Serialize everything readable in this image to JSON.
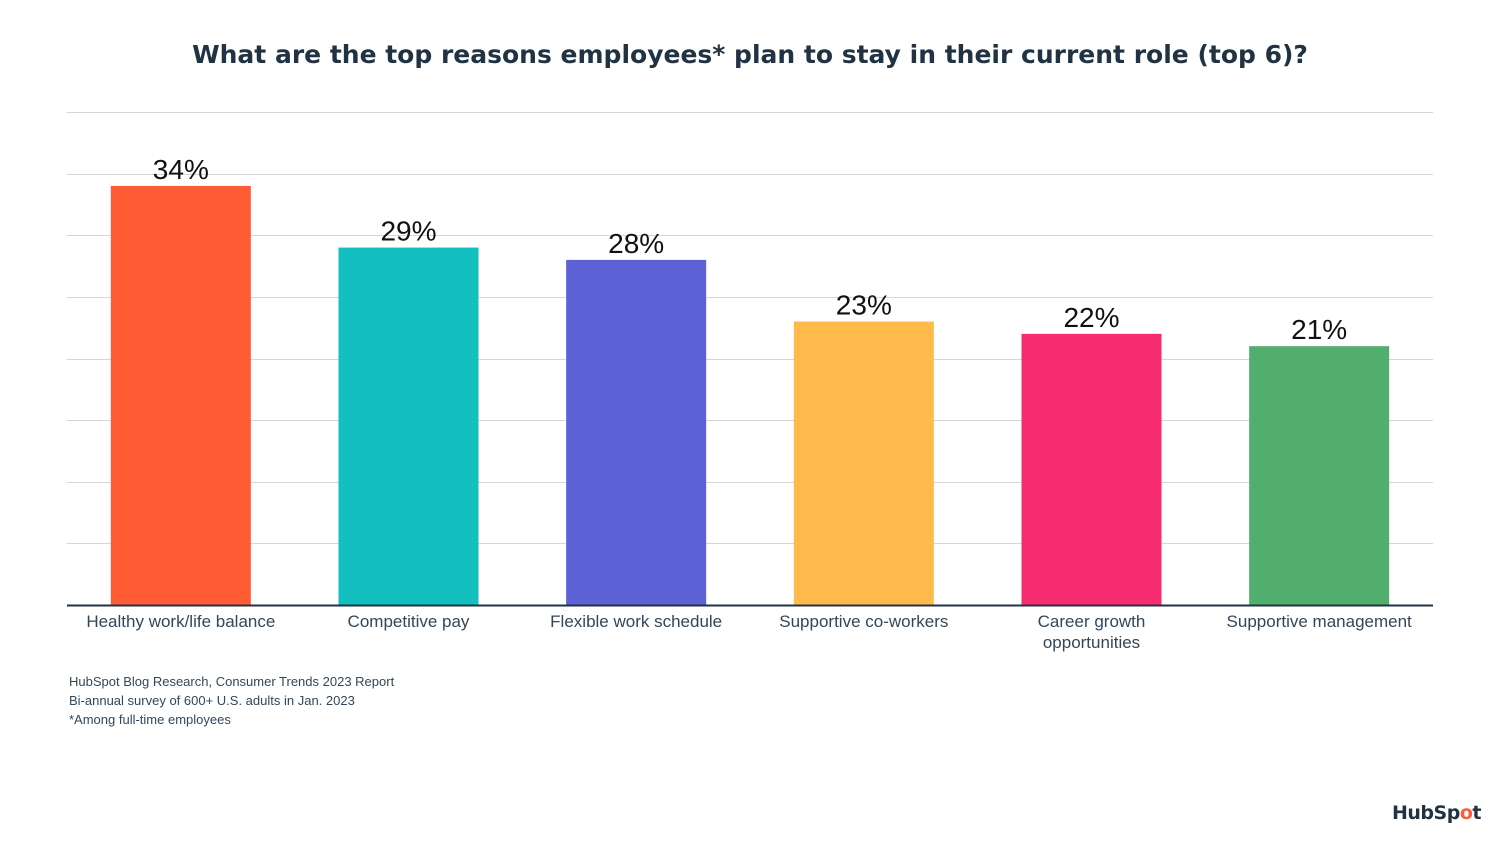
{
  "chart_data": {
    "type": "bar",
    "title": "What are the top reasons employees* plan to stay in their current role (top 6)?",
    "xlabel": "",
    "ylabel": "",
    "ylim": [
      0,
      40
    ],
    "grid": true,
    "gridline_step": 5,
    "categories": [
      "Healthy work/life balance",
      "Competitive pay",
      "Flexible work schedule",
      "Supportive co-workers",
      "Career growth opportunities",
      "Supportive management"
    ],
    "category_lines": [
      [
        "Healthy work/life balance"
      ],
      [
        "Competitive pay"
      ],
      [
        "Flexible work schedule"
      ],
      [
        "Supportive co-workers"
      ],
      [
        "Career growth",
        "opportunities"
      ],
      [
        "Supportive management"
      ]
    ],
    "values": [
      34,
      29,
      28,
      23,
      22,
      21
    ],
    "data_labels": [
      "34%",
      "29%",
      "28%",
      "23%",
      "22%",
      "21%"
    ],
    "colors": [
      "#ff5c35",
      "#13bfbf",
      "#5c62d6",
      "#ffba4b",
      "#f62b70",
      "#51ae6d"
    ]
  },
  "footnotes": [
    "HubSpot Blog Research, Consumer Trends 2023 Report",
    "Bi-annual survey of 600+ U.S. adults in Jan. 2023",
    "*Among full-time employees"
  ],
  "logo": {
    "text_before": "HubSp",
    "text_o": "o",
    "text_after": "t",
    "full": "HubSpot"
  }
}
